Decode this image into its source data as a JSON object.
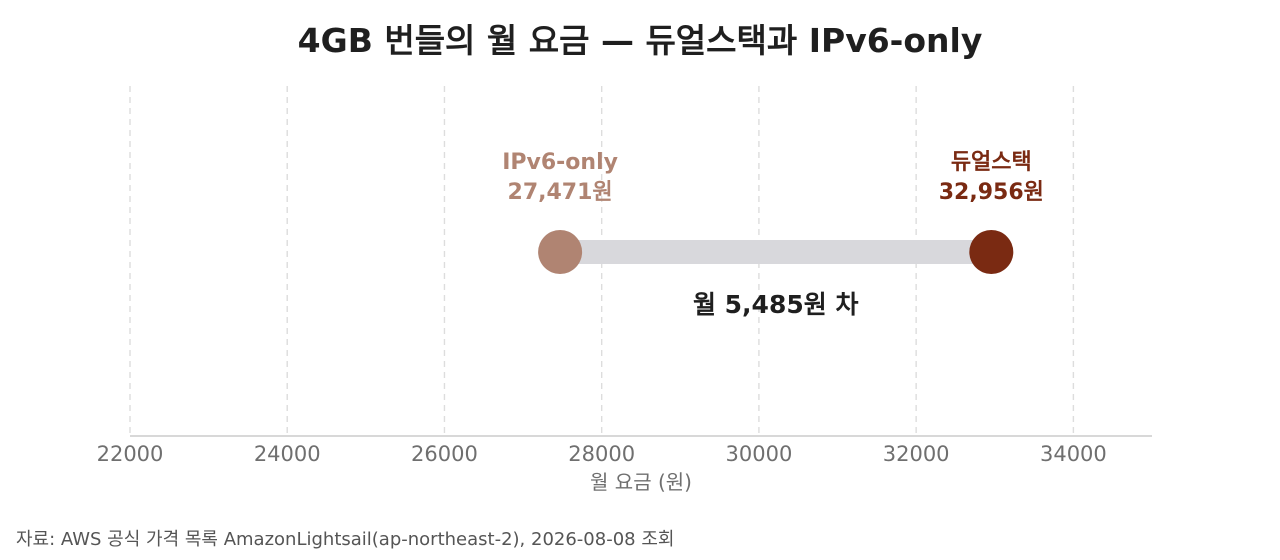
{
  "title": "4GB 번들의 월 요금 — 듀얼스택과 IPv6-only",
  "source_note": "자료: AWS 공식 가격 목록 AmazonLightsail(ap-northeast-2), 2026-08-08 조회",
  "colors": {
    "ipv6": "#b08472",
    "dualstack": "#7a2a12",
    "connector": "#d8d8dc",
    "grid": "#dddddd",
    "axis": "#cccccc",
    "tick_text": "#6f6f6f",
    "diff_text": "#1f1f1f"
  },
  "chart_data": {
    "type": "dumbbell",
    "title": "4GB 번들의 월 요금 — 듀얼스택과 IPv6-only",
    "xlabel": "월 요금 (원)",
    "ylabel": "",
    "xlim": [
      22000,
      35000
    ],
    "x_ticks": [
      22000,
      24000,
      26000,
      28000,
      30000,
      32000,
      34000
    ],
    "x_tick_labels": [
      "22000",
      "24000",
      "26000",
      "28000",
      "30000",
      "32000",
      "34000"
    ],
    "grid": "vertical dashed",
    "points": [
      {
        "name": "IPv6-only",
        "value": 27471,
        "value_label": "27,471원",
        "color": "#b08472"
      },
      {
        "name": "듀얼스택",
        "value": 32956,
        "value_label": "32,956원",
        "color": "#7a2a12"
      }
    ],
    "difference": {
      "value": 5485,
      "label": "월 5,485원 차"
    }
  }
}
